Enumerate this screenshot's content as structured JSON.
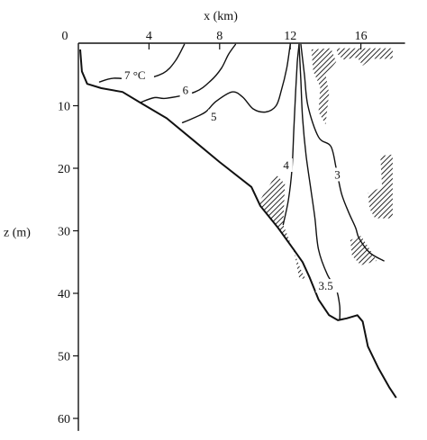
{
  "chart_data": {
    "type": "contour",
    "title": "",
    "xlabel": "x (km)",
    "ylabel": "z (m)",
    "xlim": [
      0,
      18.5
    ],
    "ylim": [
      0,
      62
    ],
    "x_ticks": [
      0,
      4,
      8,
      12,
      16
    ],
    "x_tick_labels": [
      "0",
      "4",
      "8",
      "12",
      "16"
    ],
    "y_ticks": [
      10,
      20,
      30,
      40,
      50,
      60
    ],
    "y_tick_labels": [
      "10",
      "20",
      "30",
      "40",
      "50",
      "60"
    ],
    "grid": false,
    "bottom_profile": [
      [
        0.1,
        1
      ],
      [
        0.2,
        4.5
      ],
      [
        0.5,
        6.5
      ],
      [
        1.3,
        7.2
      ],
      [
        2.5,
        7.8
      ],
      [
        3.5,
        9.5
      ],
      [
        5.0,
        12.0
      ],
      [
        6.5,
        15.5
      ],
      [
        8.0,
        19.0
      ],
      [
        9.8,
        23.0
      ],
      [
        10.3,
        26.0
      ],
      [
        11.3,
        29.5
      ],
      [
        12.2,
        33.0
      ],
      [
        12.7,
        35.0
      ],
      [
        13.1,
        37.5
      ],
      [
        13.6,
        41.0
      ],
      [
        14.2,
        43.5
      ],
      [
        14.7,
        44.3
      ],
      [
        15.2,
        44.0
      ],
      [
        15.8,
        43.5
      ],
      [
        16.1,
        44.5
      ],
      [
        16.4,
        48.5
      ],
      [
        17.0,
        52.0
      ],
      [
        17.6,
        55.0
      ],
      [
        18.0,
        56.7
      ]
    ],
    "contours": [
      {
        "level": 7,
        "label": "7 °C",
        "label_at": [
          2.6,
          5.6
        ],
        "points": [
          [
            1.2,
            6.2
          ],
          [
            2.0,
            5.6
          ],
          [
            3.5,
            5.8
          ],
          [
            4.8,
            4.8
          ],
          [
            5.5,
            2.8
          ],
          [
            6.0,
            0.2
          ]
        ]
      },
      {
        "level": 6,
        "label": "6",
        "label_at": [
          5.9,
          8.0
        ],
        "points": [
          [
            3.5,
            9.5
          ],
          [
            4.3,
            8.7
          ],
          [
            5.0,
            8.8
          ],
          [
            6.6,
            7.8
          ],
          [
            7.5,
            6.0
          ],
          [
            8.1,
            4.0
          ],
          [
            8.5,
            1.8
          ],
          [
            8.9,
            0.2
          ]
        ]
      },
      {
        "level": 5,
        "label": "5",
        "label_at": [
          7.5,
          12.2
        ],
        "points": [
          [
            5.9,
            12.7
          ],
          [
            6.5,
            12.0
          ],
          [
            7.2,
            11.0
          ],
          [
            7.8,
            9.3
          ],
          [
            8.7,
            7.8
          ],
          [
            9.3,
            8.6
          ],
          [
            9.9,
            10.5
          ],
          [
            10.6,
            11.0
          ],
          [
            11.2,
            10.0
          ],
          [
            11.5,
            7.5
          ],
          [
            11.8,
            4.0
          ],
          [
            12.0,
            0.2
          ]
        ]
      },
      {
        "level": 4,
        "label": "4",
        "label_at": [
          11.6,
          20.0
        ],
        "points": [
          [
            11.6,
            29.0
          ],
          [
            11.9,
            25.0
          ],
          [
            12.1,
            20.0
          ],
          [
            12.2,
            14.0
          ],
          [
            12.3,
            8.0
          ],
          [
            12.4,
            3.0
          ],
          [
            12.5,
            0.2
          ]
        ]
      },
      {
        "level": 3.5,
        "label": "3.5",
        "label_at": [
          13.6,
          39.3
        ],
        "points": [
          [
            12.5,
            0.2
          ],
          [
            12.6,
            6.0
          ],
          [
            12.7,
            12.0
          ],
          [
            12.9,
            18.0
          ],
          [
            13.2,
            24.0
          ],
          [
            13.4,
            28.0
          ],
          [
            13.6,
            33.0
          ],
          [
            14.1,
            37.0
          ],
          [
            14.6,
            39.3
          ],
          [
            14.8,
            42.0
          ],
          [
            14.8,
            44.2
          ]
        ]
      },
      {
        "level": 3,
        "label": "3",
        "label_at": [
          14.5,
          21.5
        ],
        "points": [
          [
            12.6,
            0.2
          ],
          [
            12.8,
            5.0
          ],
          [
            13.0,
            10.0
          ],
          [
            13.6,
            15.0
          ],
          [
            14.3,
            16.5
          ],
          [
            14.6,
            20.0
          ],
          [
            14.9,
            24.0
          ],
          [
            15.3,
            27.0
          ],
          [
            15.7,
            29.5
          ],
          [
            15.9,
            31.2
          ],
          [
            16.5,
            33.5
          ],
          [
            17.3,
            34.8
          ]
        ]
      }
    ],
    "hatched_regions": [
      [
        [
          13.2,
          1.0
        ],
        [
          14.3,
          0.8
        ],
        [
          14.6,
          3.0
        ],
        [
          14.0,
          5.0
        ],
        [
          14.2,
          8.0
        ],
        [
          14.0,
          13.0
        ],
        [
          13.6,
          11.0
        ],
        [
          13.7,
          7.0
        ],
        [
          13.3,
          4.5
        ]
      ],
      [
        [
          14.6,
          0.8
        ],
        [
          17.8,
          0.8
        ],
        [
          17.8,
          2.5
        ],
        [
          16.6,
          2.5
        ],
        [
          16.1,
          3.6
        ],
        [
          15.8,
          2.3
        ],
        [
          15.0,
          2.6
        ],
        [
          14.7,
          1.8
        ]
      ],
      [
        [
          16.4,
          24.0
        ],
        [
          17.2,
          23.0
        ],
        [
          17.1,
          18.0
        ],
        [
          17.8,
          17.8
        ],
        [
          17.8,
          28.0
        ],
        [
          16.8,
          28.0
        ],
        [
          16.5,
          26.5
        ]
      ],
      [
        [
          15.4,
          31.5
        ],
        [
          16.0,
          30.8
        ],
        [
          16.4,
          32.5
        ],
        [
          16.9,
          34.8
        ],
        [
          16.0,
          35.5
        ],
        [
          15.5,
          34.0
        ]
      ],
      [
        [
          10.2,
          25.5
        ],
        [
          11.2,
          21.0
        ],
        [
          11.7,
          22.5
        ],
        [
          11.6,
          29.0
        ],
        [
          12.6,
          36.2
        ],
        [
          12.9,
          37.8
        ],
        [
          12.5,
          37.5
        ],
        [
          12.2,
          33.0
        ],
        [
          11.3,
          29.5
        ],
        [
          10.3,
          26.0
        ]
      ]
    ]
  }
}
